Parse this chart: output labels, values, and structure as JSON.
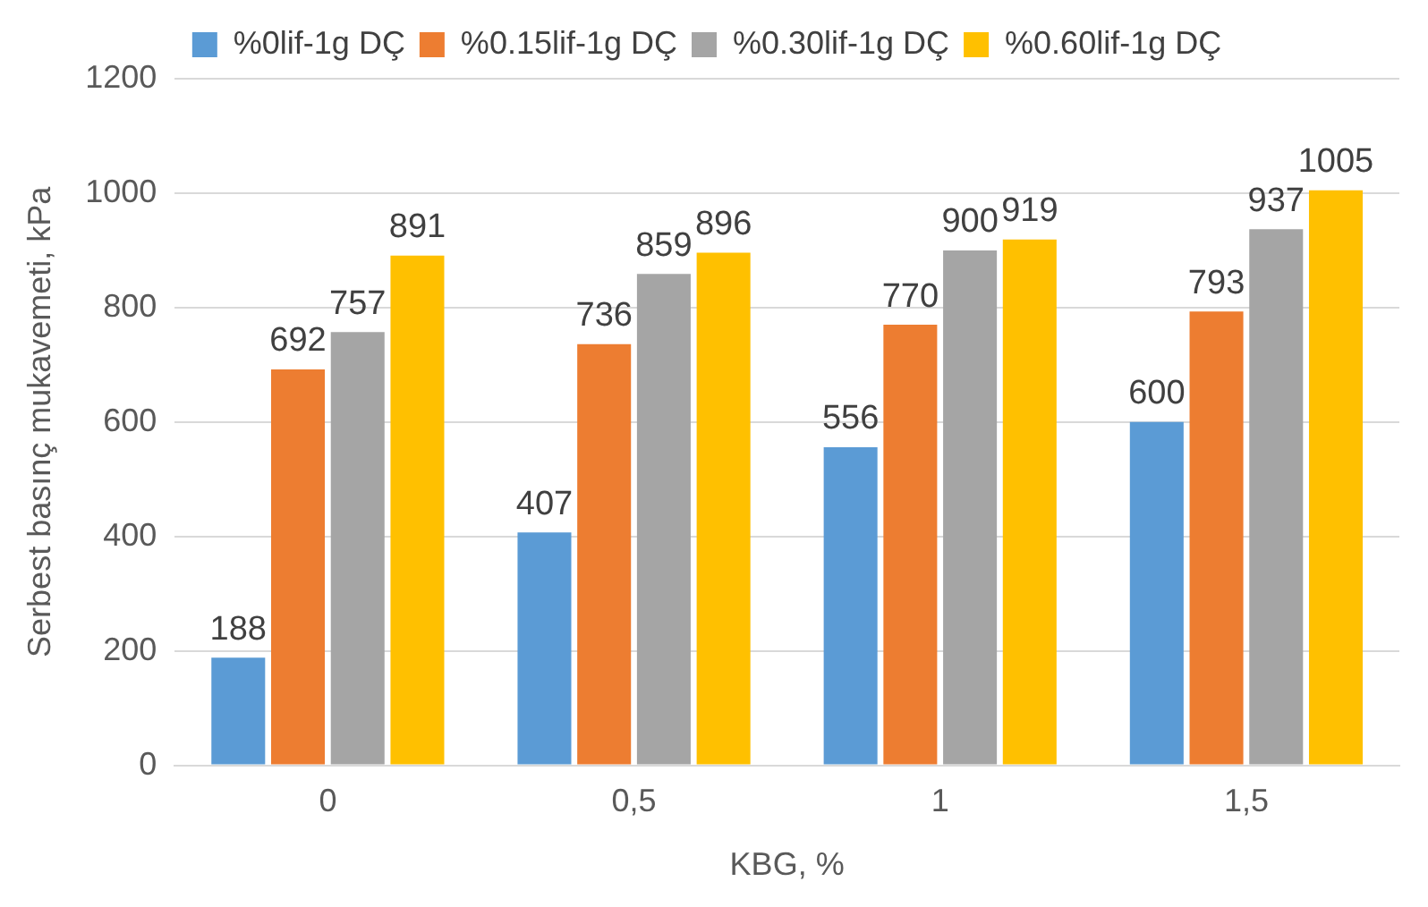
{
  "chart_data": {
    "type": "bar",
    "xlabel": "KBG, %",
    "ylabel": "Serbest basınç mukavemeti, kPa",
    "categories": [
      "0",
      "0,5",
      "1",
      "1,5"
    ],
    "series": [
      {
        "name": "%0lif-1g DÇ",
        "color": "#5b9bd5",
        "values": [
          188,
          407,
          556,
          600
        ]
      },
      {
        "name": "%0.15lif-1g DÇ",
        "color": "#ed7d31",
        "values": [
          692,
          736,
          770,
          793
        ]
      },
      {
        "name": "%0.30lif-1g DÇ",
        "color": "#a5a5a5",
        "values": [
          757,
          859,
          900,
          937
        ]
      },
      {
        "name": "%0.60lif-1g DÇ",
        "color": "#ffc000",
        "values": [
          891,
          896,
          919,
          1005
        ]
      }
    ],
    "ylim": [
      0,
      1200
    ],
    "yticks": [
      0,
      200,
      400,
      600,
      800,
      1000,
      1200
    ],
    "grid": "y",
    "legend": "top",
    "data_labels": true
  }
}
